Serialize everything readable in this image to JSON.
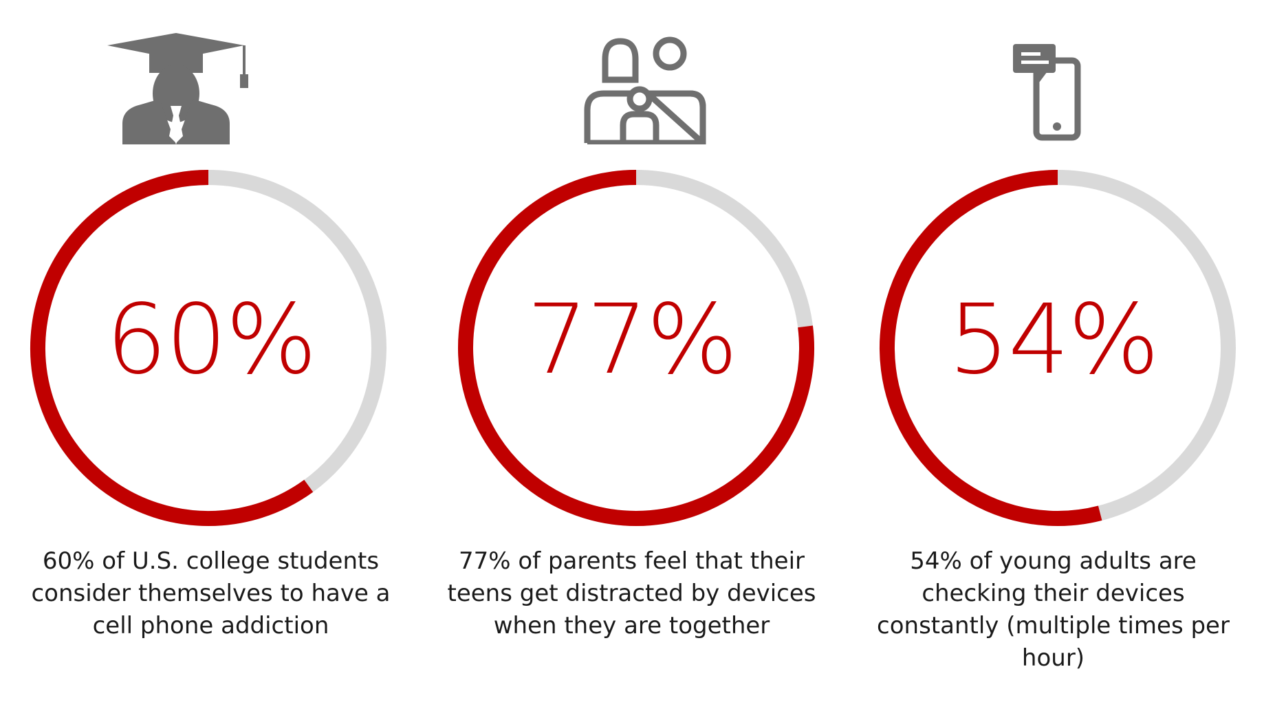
{
  "chart_data": [
    {
      "type": "pie",
      "icon": "graduate-icon",
      "percent_label": "60%",
      "values": [
        60,
        40
      ],
      "caption": "60% of U.S. college students consider themselves to have a cell phone addiction"
    },
    {
      "type": "pie",
      "icon": "family-icon",
      "percent_label": "77%",
      "values": [
        77,
        23
      ],
      "caption": "77% of parents feel that their teens get distracted by devices when they are together"
    },
    {
      "type": "pie",
      "icon": "phone-message-icon",
      "percent_label": "54%",
      "values": [
        54,
        46
      ],
      "caption": "54% of young adults are checking their devices constantly (multiple times per hour)"
    }
  ],
  "colors": {
    "accent": "#c00000",
    "track": "#d9d9d9",
    "icon": "#6f6f6f",
    "text": "#1a1a1a"
  }
}
